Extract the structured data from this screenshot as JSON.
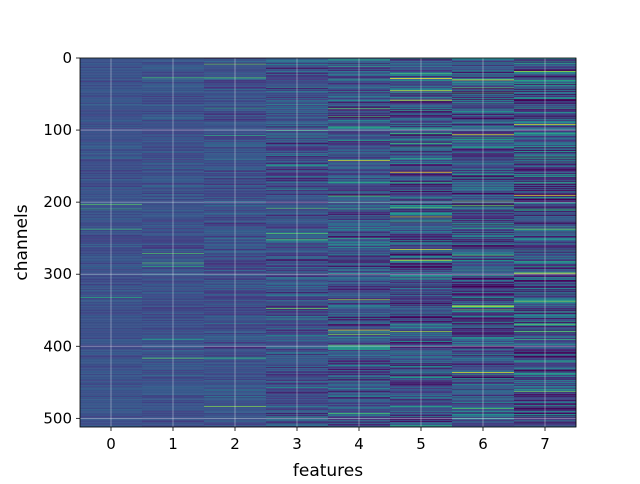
{
  "chart_data": {
    "type": "heatmap",
    "title": "",
    "xlabel": "features",
    "ylabel": "channels",
    "x_categories": [
      0,
      1,
      2,
      3,
      4,
      5,
      6,
      7
    ],
    "x_range": [
      -0.5,
      7.5
    ],
    "y_range": [
      512,
      0
    ],
    "y_ticks": [
      0,
      100,
      200,
      300,
      400,
      500
    ],
    "y_inverted": true,
    "rows": 512,
    "colormap": "viridis",
    "grid": true,
    "column_variance": [
      0.1,
      0.13,
      0.17,
      0.27,
      0.34,
      0.44,
      0.46,
      0.5
    ],
    "highlights": [
      {
        "feature": 5,
        "channel": 45
      },
      {
        "feature": 5,
        "channel": 58
      },
      {
        "feature": 6,
        "channel": 30
      },
      {
        "feature": 6,
        "channel": 106
      },
      {
        "feature": 6,
        "channel": 344
      },
      {
        "feature": 6,
        "channel": 436
      },
      {
        "feature": 7,
        "channel": 92
      },
      {
        "feature": 7,
        "channel": 190
      },
      {
        "feature": 7,
        "channel": 298
      },
      {
        "feature": 5,
        "channel": 265
      },
      {
        "feature": 5,
        "channel": 280
      },
      {
        "feature": 4,
        "channel": 142
      },
      {
        "feature": 4,
        "channel": 377
      }
    ]
  }
}
